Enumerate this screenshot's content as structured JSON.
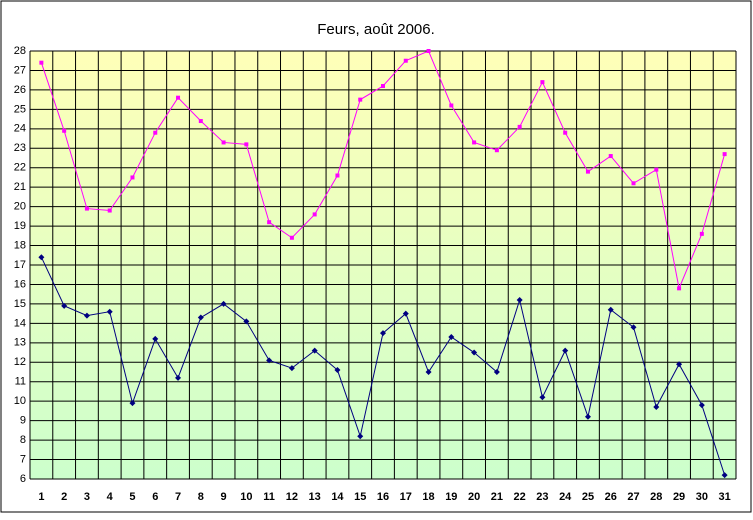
{
  "chart_data": {
    "type": "line",
    "title": "Feurs, août 2006.",
    "categories": [
      "1",
      "2",
      "3",
      "4",
      "5",
      "6",
      "7",
      "8",
      "9",
      "10",
      "11",
      "12",
      "13",
      "14",
      "15",
      "16",
      "17",
      "18",
      "19",
      "20",
      "21",
      "22",
      "23",
      "24",
      "25",
      "26",
      "27",
      "28",
      "29",
      "30",
      "31"
    ],
    "series": [
      {
        "color": "#ff00ff",
        "marker": "square",
        "values": [
          27.4,
          23.9,
          19.9,
          19.8,
          21.5,
          23.8,
          25.6,
          24.4,
          23.3,
          23.2,
          19.2,
          18.4,
          19.6,
          21.6,
          25.5,
          26.2,
          27.5,
          28.0,
          25.2,
          23.3,
          22.9,
          24.1,
          26.4,
          23.8,
          21.8,
          22.6,
          21.2,
          21.9,
          15.8,
          18.6,
          22.7
        ]
      },
      {
        "color": "#000080",
        "marker": "diamond",
        "values": [
          17.4,
          14.9,
          14.4,
          14.6,
          9.9,
          13.2,
          11.2,
          14.3,
          15.0,
          14.1,
          12.1,
          11.7,
          12.6,
          11.6,
          8.2,
          13.5,
          14.5,
          11.5,
          13.3,
          12.5,
          11.5,
          15.2,
          10.2,
          12.6,
          9.2,
          14.7,
          13.8,
          9.7,
          11.9,
          9.8,
          6.2
        ]
      }
    ],
    "ylim": [
      6,
      28
    ],
    "yticks": [
      6,
      7,
      8,
      9,
      10,
      11,
      12,
      13,
      14,
      15,
      16,
      17,
      18,
      19,
      20,
      21,
      22,
      23,
      24,
      25,
      26,
      27,
      28
    ],
    "grid": true
  }
}
